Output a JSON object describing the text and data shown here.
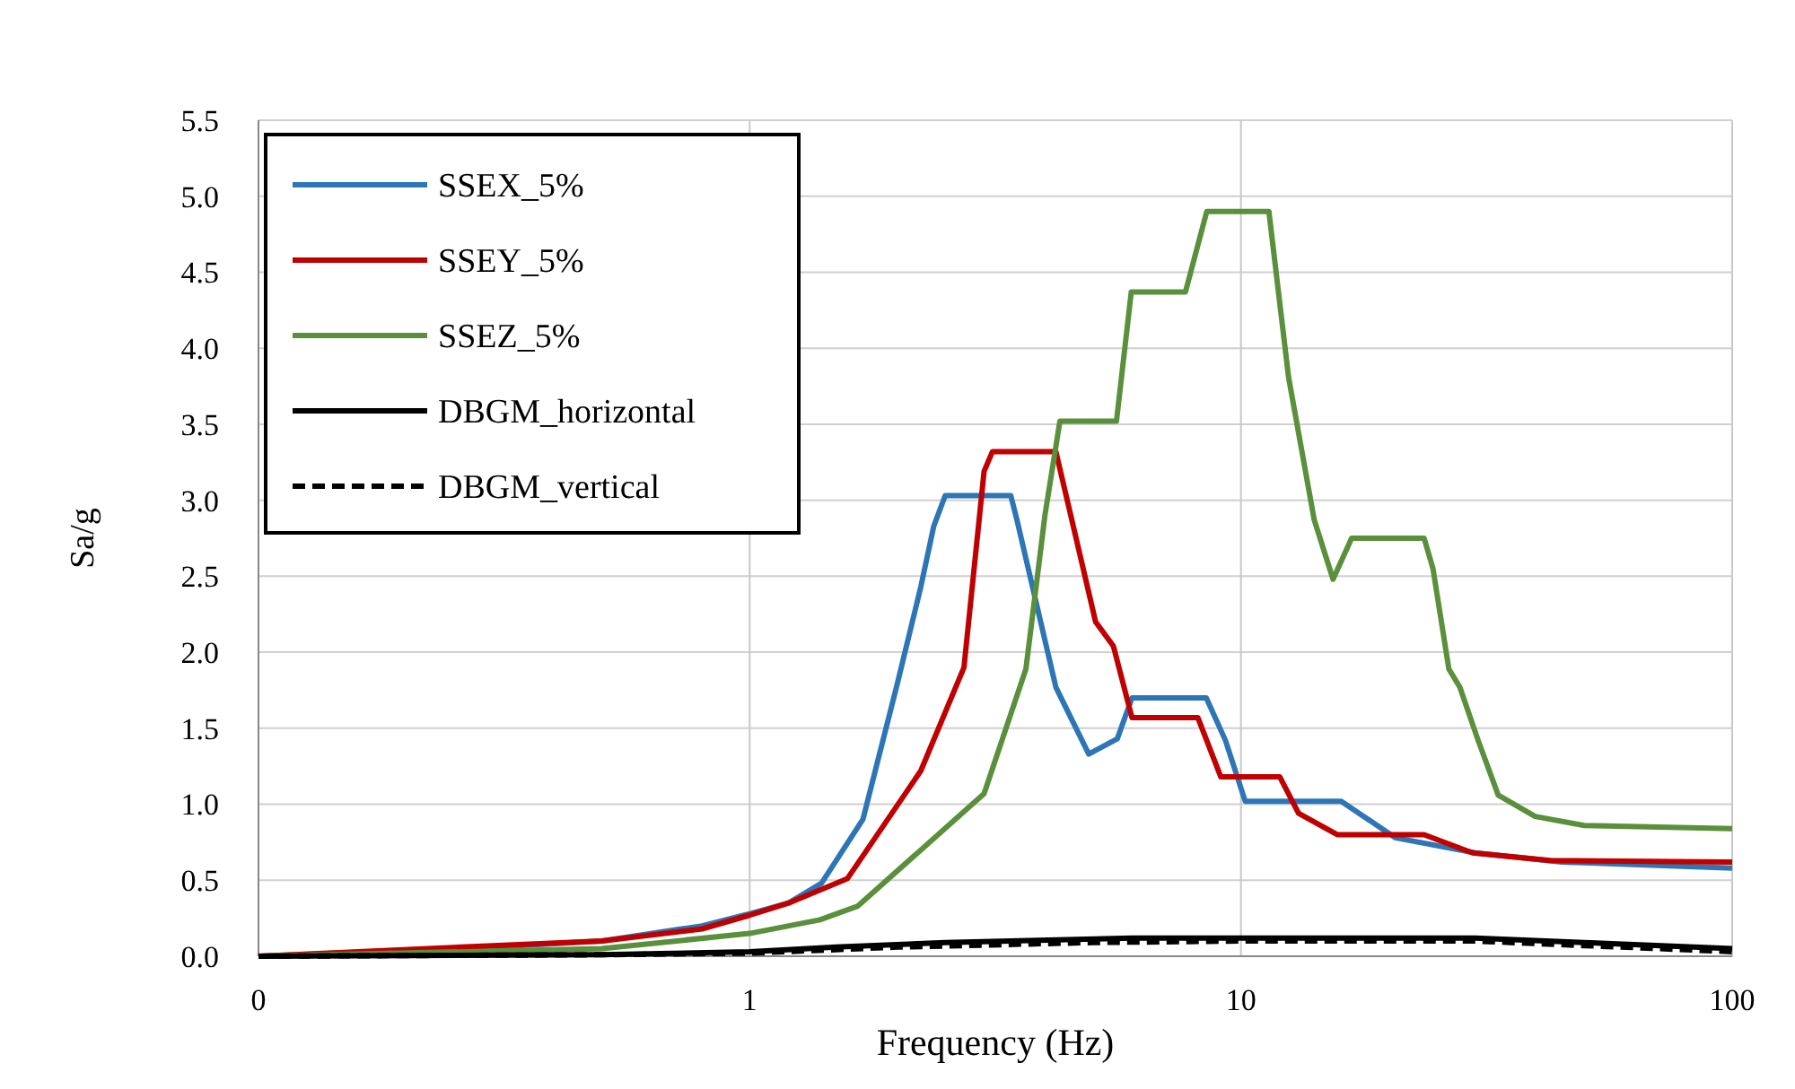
{
  "chart_data": {
    "type": "line",
    "xlabel": "Frequency (Hz)",
    "ylabel": "Sa/g",
    "log": "x",
    "xlim": [
      0.1,
      100
    ],
    "xticks": [
      {
        "value": 0.1,
        "label": "0"
      },
      1,
      10,
      100
    ],
    "ylim": [
      0,
      5.5
    ],
    "yticks": [
      {
        "value": 0,
        "label": "0.0"
      },
      0.5,
      {
        "value": 1,
        "label": "1.0"
      },
      1.5,
      {
        "value": 2,
        "label": "2.0"
      },
      2.5,
      {
        "value": 3,
        "label": "3.0"
      },
      3.5,
      {
        "value": 4,
        "label": "4.0"
      },
      4.5,
      {
        "value": 5,
        "label": "5.0"
      },
      5.5
    ],
    "grid": true,
    "legend": "top left",
    "series": [
      {
        "name": "SSEX_5%",
        "color": "#2e75b6",
        "x": [
          0.1,
          0.3,
          0.5,
          0.8,
          1.0,
          1.2,
          1.4,
          1.7,
          2.0,
          2.23,
          2.37,
          2.5,
          3.4,
          3.5,
          4.2,
          4.9,
          5.6,
          6.0,
          8.5,
          9.3,
          10.2,
          16,
          20.6,
          30,
          45,
          100
        ],
        "values": [
          0,
          0.06,
          0.1,
          0.2,
          0.28,
          0.35,
          0.48,
          0.9,
          1.8,
          2.43,
          2.83,
          3.03,
          3.03,
          2.87,
          1.77,
          1.33,
          1.43,
          1.7,
          1.7,
          1.42,
          1.02,
          1.02,
          0.78,
          0.68,
          0.62,
          0.58
        ]
      },
      {
        "name": "SSEY_5%",
        "color": "#c00000",
        "x": [
          0.1,
          0.3,
          0.5,
          0.8,
          1.0,
          1.2,
          1.58,
          2.23,
          2.73,
          3.0,
          3.12,
          4.2,
          5.06,
          5.5,
          6.0,
          8.17,
          9.1,
          12.0,
          13.1,
          15.7,
          23.6,
          29.6,
          42.6,
          100
        ],
        "values": [
          0,
          0.07,
          0.1,
          0.18,
          0.27,
          0.35,
          0.51,
          1.22,
          1.9,
          3.19,
          3.32,
          3.32,
          2.2,
          2.04,
          1.57,
          1.57,
          1.18,
          1.18,
          0.94,
          0.8,
          0.8,
          0.68,
          0.63,
          0.62
        ]
      },
      {
        "name": "SSEZ_5%",
        "color": "#5a8f3c",
        "x": [
          0.1,
          0.5,
          1.0,
          1.39,
          1.66,
          3.0,
          3.65,
          3.99,
          4.28,
          5.58,
          5.98,
          7.71,
          8.52,
          11.4,
          12.5,
          14.1,
          15.4,
          16.8,
          23.6,
          24.6,
          26.5,
          27.9,
          30.4,
          33.4,
          39.7,
          50,
          100
        ],
        "values": [
          0,
          0.05,
          0.15,
          0.24,
          0.33,
          1.07,
          1.89,
          2.9,
          3.52,
          3.52,
          4.37,
          4.37,
          4.9,
          4.9,
          3.81,
          2.87,
          2.48,
          2.75,
          2.75,
          2.55,
          1.89,
          1.77,
          1.42,
          1.06,
          0.92,
          0.86,
          0.84
        ]
      },
      {
        "name": "DBGM_horizontal",
        "color": "#000000",
        "line_style": "solid",
        "x": [
          0.1,
          0.5,
          1,
          1.5,
          2.5,
          6,
          30,
          50,
          100
        ],
        "values": [
          0,
          0.01,
          0.03,
          0.06,
          0.09,
          0.12,
          0.12,
          0.09,
          0.05
        ]
      },
      {
        "name": "DBGM_vertical",
        "color": "#000000",
        "line_style": "dashed",
        "x": [
          0.1,
          0.5,
          1,
          2,
          5,
          10,
          30,
          50,
          100
        ],
        "values": [
          0,
          0.01,
          0.02,
          0.06,
          0.09,
          0.1,
          0.1,
          0.07,
          0.03
        ]
      }
    ]
  }
}
